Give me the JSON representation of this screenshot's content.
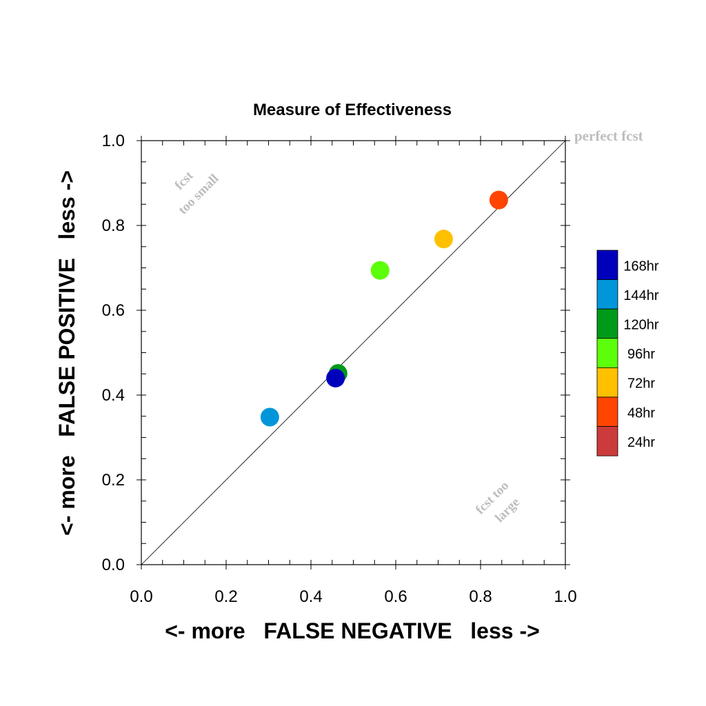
{
  "chart_data": {
    "type": "scatter",
    "title": "Measure of Effectiveness",
    "xlabel": "<- more   FALSE NEGATIVE   less ->",
    "ylabel": "<- more   FALSE POSITIVE   less ->",
    "xlim": [
      0.0,
      1.0
    ],
    "ylim": [
      0.0,
      1.0
    ],
    "x_ticks": [
      "0.0",
      "0.2",
      "0.4",
      "0.6",
      "0.8",
      "1.0"
    ],
    "y_ticks": [
      "0.0",
      "0.2",
      "0.4",
      "0.6",
      "0.8",
      "1.0"
    ],
    "grid": false,
    "diagonal_line": true,
    "annotations": {
      "perfect": "perfect fcst",
      "small_line1": "fcst",
      "small_line2": "too small",
      "large_line1": "fcst too",
      "large_line2": "large"
    },
    "legend_position": "right",
    "legend": [
      {
        "label": "168hr",
        "color": "#0000bb"
      },
      {
        "label": "144hr",
        "color": "#0096d9"
      },
      {
        "label": "120hr",
        "color": "#009a1a"
      },
      {
        "label": "96hr",
        "color": "#5cff0a"
      },
      {
        "label": "72hr",
        "color": "#ffc000"
      },
      {
        "label": "48hr",
        "color": "#ff4500"
      },
      {
        "label": "24hr",
        "color": "#cc3b3b"
      }
    ],
    "series": [
      {
        "name": "48hr",
        "x": 0.843,
        "y": 0.86,
        "color": "#ff4500"
      },
      {
        "name": "72hr",
        "x": 0.713,
        "y": 0.768,
        "color": "#ffc000"
      },
      {
        "name": "96hr",
        "x": 0.563,
        "y": 0.694,
        "color": "#5cff0a"
      },
      {
        "name": "120hr",
        "x": 0.464,
        "y": 0.451,
        "color": "#009a1a"
      },
      {
        "name": "168hr",
        "x": 0.458,
        "y": 0.44,
        "color": "#0000bb"
      },
      {
        "name": "144hr",
        "x": 0.303,
        "y": 0.348,
        "color": "#0096d9"
      }
    ]
  }
}
